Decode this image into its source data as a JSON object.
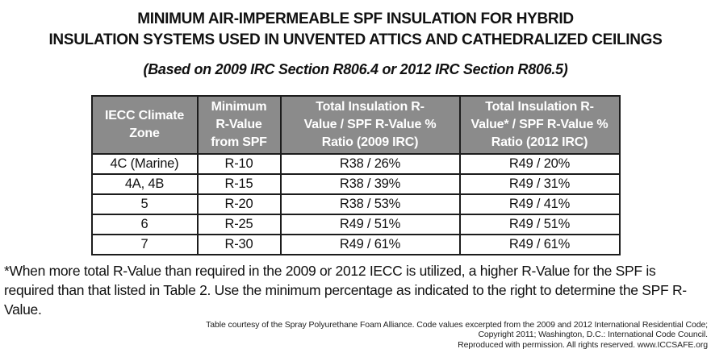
{
  "title": {
    "line1": "MINIMUM AIR-IMPERMEABLE SPF INSULATION FOR HYBRID",
    "line2": "INSULATION SYSTEMS USED IN UNVENTED ATTICS AND CATHEDRALIZED CEILINGS",
    "subtitle": "(Based on 2009 IRC Section R806.4 or 2012 IRC Section R806.5)"
  },
  "table": {
    "header_bg": "#8b8b8b",
    "header_text_color": "#ffffff",
    "border_color": "#1c1c1c",
    "headers": [
      "IECC Climate\nZone",
      "Minimum\nR-Value\nfrom SPF",
      "Total Insulation R-\nValue / SPF R-Value %\nRatio (2009 IRC)",
      "Total Insulation R-\nValue* / SPF R-Value %\nRatio (2012 IRC)"
    ],
    "rows": [
      [
        "4C (Marine)",
        "R-10",
        "R38 / 26%",
        "R49 / 20%"
      ],
      [
        "4A, 4B",
        "R-15",
        "R38 / 39%",
        "R49 / 31%"
      ],
      [
        "5",
        "R-20",
        "R38 / 53%",
        "R49 / 41%"
      ],
      [
        "6",
        "R-25",
        "R49 / 51%",
        "R49 / 51%"
      ],
      [
        "7",
        "R-30",
        "R49 / 61%",
        "R49 / 61%"
      ]
    ]
  },
  "footnote": "*When more total R-Value than required in the 2009 or 2012 IECC is utilized, a higher R-Value for the SPF is required than that listed in Table 2. Use the minimum percentage as indicated to the right to determine the SPF R-Value.",
  "credit": {
    "line1": "Table courtesy of the Spray Polyurethane Foam Alliance. Code values excerpted from the 2009 and 2012 International Residential Code;",
    "line2": "Copyright 2011; Washington, D.C.: International Code Council.",
    "line3": "Reproduced with permission. All rights reserved. www.ICCSAFE.org"
  }
}
